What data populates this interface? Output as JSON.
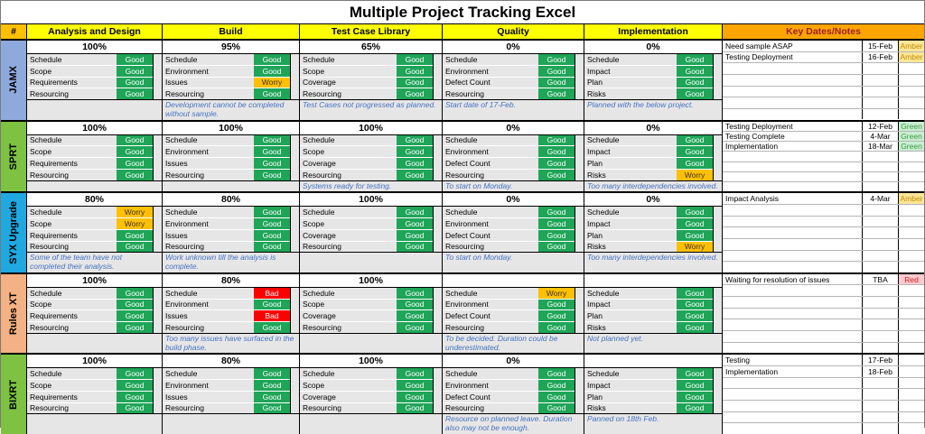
{
  "title": "Multiple Project Tracking Excel",
  "columns": {
    "hash": "#",
    "phases": [
      "Analysis and Design",
      "Build",
      "Test Case Library",
      "Quality",
      "Implementation"
    ],
    "keydates": "Key Dates/Notes"
  },
  "colors": {
    "good": "#1FA558",
    "worry": "#FFC000",
    "bad": "#FE0000",
    "header_yellow": "#FFFF00",
    "hash_orange": "#FFC000",
    "keydates_header": "#FFA500",
    "note_blue": "#4472C4",
    "milestone_amber_bg": "#FFE598",
    "milestone_green_bg": "#C8EFD0",
    "milestone_red_bg": "#FFC9CE"
  },
  "projects": [
    {
      "name": "JAMX",
      "color": "#8EA9DB",
      "phases": [
        {
          "percent": "100%",
          "rows": [
            {
              "label": "Schedule",
              "status": "Good"
            },
            {
              "label": "Scope",
              "status": "Good"
            },
            {
              "label": "Requirements",
              "status": "Good"
            },
            {
              "label": "Resourcing",
              "status": "Good"
            }
          ],
          "note": ""
        },
        {
          "percent": "95%",
          "rows": [
            {
              "label": "Schedule",
              "status": "Good"
            },
            {
              "label": "Environment",
              "status": "Good"
            },
            {
              "label": "Issues",
              "status": "Worry"
            },
            {
              "label": "Resourcing",
              "status": "Good"
            }
          ],
          "note": "Development cannot be completed without sample."
        },
        {
          "percent": "65%",
          "rows": [
            {
              "label": "Schedule",
              "status": "Good"
            },
            {
              "label": "Scope",
              "status": "Good"
            },
            {
              "label": "Coverage",
              "status": "Good"
            },
            {
              "label": "Resourcing",
              "status": "Good"
            }
          ],
          "note": "Test Cases not progressed as planned."
        },
        {
          "percent": "0%",
          "rows": [
            {
              "label": "Schedule",
              "status": "Good"
            },
            {
              "label": "Environment",
              "status": "Good"
            },
            {
              "label": "Defect Count",
              "status": "Good"
            },
            {
              "label": "Resourcing",
              "status": "Good"
            }
          ],
          "note": "Start date of 17-Feb."
        },
        {
          "percent": "0%",
          "rows": [
            {
              "label": "Schedule",
              "status": "Good"
            },
            {
              "label": "Impact",
              "status": "Good"
            },
            {
              "label": "Plan",
              "status": "Good"
            },
            {
              "label": "Risks",
              "status": "Good"
            }
          ],
          "note": "Planned with the below project."
        }
      ],
      "milestones": [
        {
          "label": "Need sample ASAP",
          "date": "15-Feb",
          "status": "Amber"
        },
        {
          "label": "Testing Deployment",
          "date": "16-Feb",
          "status": "Amber"
        }
      ]
    },
    {
      "name": "SPRT",
      "color": "#7EC242",
      "phases": [
        {
          "percent": "100%",
          "rows": [
            {
              "label": "Schedule",
              "status": "Good"
            },
            {
              "label": "Scope",
              "status": "Good"
            },
            {
              "label": "Requirements",
              "status": "Good"
            },
            {
              "label": "Resourcing",
              "status": "Good"
            }
          ],
          "note": ""
        },
        {
          "percent": "100%",
          "rows": [
            {
              "label": "Schedule",
              "status": "Good"
            },
            {
              "label": "Environment",
              "status": "Good"
            },
            {
              "label": "Issues",
              "status": "Good"
            },
            {
              "label": "Resourcing",
              "status": "Good"
            }
          ],
          "note": ""
        },
        {
          "percent": "100%",
          "rows": [
            {
              "label": "Schedule",
              "status": "Good"
            },
            {
              "label": "Scope",
              "status": "Good"
            },
            {
              "label": "Coverage",
              "status": "Good"
            },
            {
              "label": "Resourcing",
              "status": "Good"
            }
          ],
          "note": "Systems ready for testing."
        },
        {
          "percent": "0%",
          "rows": [
            {
              "label": "Schedule",
              "status": "Good"
            },
            {
              "label": "Environment",
              "status": "Good"
            },
            {
              "label": "Defect Count",
              "status": "Good"
            },
            {
              "label": "Resourcing",
              "status": "Good"
            }
          ],
          "note": "To start on Monday."
        },
        {
          "percent": "0%",
          "rows": [
            {
              "label": "Schedule",
              "status": "Good"
            },
            {
              "label": "Impact",
              "status": "Good"
            },
            {
              "label": "Plan",
              "status": "Good"
            },
            {
              "label": "Risks",
              "status": "Worry"
            }
          ],
          "note": "Too many interdependencies involved."
        }
      ],
      "milestones": [
        {
          "label": "Testing Deployment",
          "date": "12-Feb",
          "status": "Green"
        },
        {
          "label": "Testing Complete",
          "date": "4-Mar",
          "status": "Green"
        },
        {
          "label": "Implementation",
          "date": "18-Mar",
          "status": "Green"
        }
      ]
    },
    {
      "name": "SYX Upgrade",
      "color": "#1FA9E0",
      "phases": [
        {
          "percent": "80%",
          "rows": [
            {
              "label": "Schedule",
              "status": "Worry"
            },
            {
              "label": "Scope",
              "status": "Worry"
            },
            {
              "label": "Requirements",
              "status": "Good"
            },
            {
              "label": "Resourcing",
              "status": "Good"
            }
          ],
          "note": "Some of the team have not completed their analysis."
        },
        {
          "percent": "80%",
          "rows": [
            {
              "label": "Schedule",
              "status": "Good"
            },
            {
              "label": "Environment",
              "status": "Good"
            },
            {
              "label": "Issues",
              "status": "Good"
            },
            {
              "label": "Resourcing",
              "status": "Good"
            }
          ],
          "note": "Work unknown till the analysis is complete."
        },
        {
          "percent": "100%",
          "rows": [
            {
              "label": "Schedule",
              "status": "Good"
            },
            {
              "label": "Scope",
              "status": "Good"
            },
            {
              "label": "Coverage",
              "status": "Good"
            },
            {
              "label": "Resourcing",
              "status": "Good"
            }
          ],
          "note": ""
        },
        {
          "percent": "0%",
          "rows": [
            {
              "label": "Schedule",
              "status": "Good"
            },
            {
              "label": "Environment",
              "status": "Good"
            },
            {
              "label": "Defect Count",
              "status": "Good"
            },
            {
              "label": "Resourcing",
              "status": "Good"
            }
          ],
          "note": "To start on Monday."
        },
        {
          "percent": "0%",
          "rows": [
            {
              "label": "Schedule",
              "status": "Good"
            },
            {
              "label": "Impact",
              "status": "Good"
            },
            {
              "label": "Plan",
              "status": "Good"
            },
            {
              "label": "Risks",
              "status": "Worry"
            }
          ],
          "note": "Too many interdependencies involved."
        }
      ],
      "milestones": [
        {
          "label": "Impact Analysis",
          "date": "4-Mar",
          "status": "Amber"
        }
      ]
    },
    {
      "name": "Rules XT",
      "color": "#F4B183",
      "phases": [
        {
          "percent": "100%",
          "rows": [
            {
              "label": "Schedule",
              "status": "Good"
            },
            {
              "label": "Scope",
              "status": "Good"
            },
            {
              "label": "Requirements",
              "status": "Good"
            },
            {
              "label": "Resourcing",
              "status": "Good"
            }
          ],
          "note": ""
        },
        {
          "percent": "80%",
          "rows": [
            {
              "label": "Schedule",
              "status": "Bad"
            },
            {
              "label": "Environment",
              "status": "Good"
            },
            {
              "label": "Issues",
              "status": "Bad"
            },
            {
              "label": "Resourcing",
              "status": "Good"
            }
          ],
          "note": "Too many issues have surfaced in the build phase."
        },
        {
          "percent": "100%",
          "rows": [
            {
              "label": "Schedule",
              "status": "Good"
            },
            {
              "label": "Scope",
              "status": "Good"
            },
            {
              "label": "Coverage",
              "status": "Good"
            },
            {
              "label": "Resourcing",
              "status": "Good"
            }
          ],
          "note": ""
        },
        {
          "percent": "",
          "rows": [
            {
              "label": "Schedule",
              "status": "Worry"
            },
            {
              "label": "Environment",
              "status": "Good"
            },
            {
              "label": "Defect Count",
              "status": "Good"
            },
            {
              "label": "Resourcing",
              "status": "Good"
            }
          ],
          "note": "To be decided. Duration could be underestimated."
        },
        {
          "percent": "",
          "rows": [
            {
              "label": "Schedule",
              "status": "Good"
            },
            {
              "label": "Impact",
              "status": "Good"
            },
            {
              "label": "Plan",
              "status": "Good"
            },
            {
              "label": "Risks",
              "status": "Good"
            }
          ],
          "note": "Not planned yet."
        }
      ],
      "milestones": [
        {
          "label": "Waiting for resolution of issues",
          "date": "TBA",
          "status": "Red"
        }
      ]
    },
    {
      "name": "BIXRT",
      "color": "#7EC242",
      "phases": [
        {
          "percent": "100%",
          "rows": [
            {
              "label": "Schedule",
              "status": "Good"
            },
            {
              "label": "Scope",
              "status": "Good"
            },
            {
              "label": "Requirements",
              "status": "Good"
            },
            {
              "label": "Resourcing",
              "status": "Good"
            }
          ],
          "note": ""
        },
        {
          "percent": "80%",
          "rows": [
            {
              "label": "Schedule",
              "status": "Good"
            },
            {
              "label": "Environment",
              "status": "Good"
            },
            {
              "label": "Issues",
              "status": "Good"
            },
            {
              "label": "Resourcing",
              "status": "Good"
            }
          ],
          "note": ""
        },
        {
          "percent": "100%",
          "rows": [
            {
              "label": "Schedule",
              "status": "Good"
            },
            {
              "label": "Scope",
              "status": "Good"
            },
            {
              "label": "Coverage",
              "status": "Good"
            },
            {
              "label": "Resourcing",
              "status": "Good"
            }
          ],
          "note": ""
        },
        {
          "percent": "0%",
          "rows": [
            {
              "label": "Schedule",
              "status": "Good"
            },
            {
              "label": "Environment",
              "status": "Good"
            },
            {
              "label": "Defect Count",
              "status": "Good"
            },
            {
              "label": "Resourcing",
              "status": "Good"
            }
          ],
          "note": "Resource on planned leave. Duration also may not be enough."
        },
        {
          "percent": "",
          "rows": [
            {
              "label": "Schedule",
              "status": "Good"
            },
            {
              "label": "Impact",
              "status": "Good"
            },
            {
              "label": "Plan",
              "status": "Good"
            },
            {
              "label": "Risks",
              "status": "Good"
            }
          ],
          "note": "Panned on 18th Feb."
        }
      ],
      "milestones": [
        {
          "label": "Testing",
          "date": "17-Feb",
          "status": ""
        },
        {
          "label": "Implementation",
          "date": "18-Feb",
          "status": ""
        }
      ]
    }
  ]
}
